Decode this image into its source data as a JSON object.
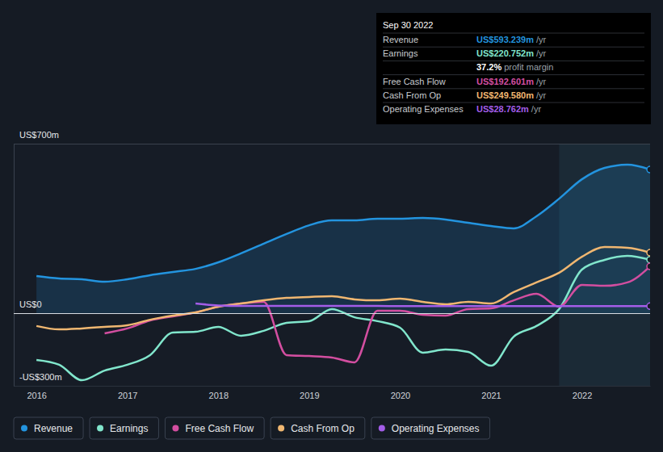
{
  "chart_data": {
    "type": "line",
    "x": [
      2016,
      2016.25,
      2016.5,
      2016.75,
      2017,
      2017.25,
      2017.5,
      2017.75,
      2018,
      2018.25,
      2018.5,
      2018.75,
      2019,
      2019.25,
      2019.5,
      2019.75,
      2020,
      2020.25,
      2020.5,
      2020.75,
      2021,
      2021.25,
      2021.5,
      2021.75,
      2022,
      2022.25,
      2022.5,
      2022.75
    ],
    "xlim": [
      2015.75,
      2022.75
    ],
    "xticks": [
      2016,
      2017,
      2018,
      2019,
      2020,
      2021,
      2022
    ],
    "ylim": [
      -300,
      700
    ],
    "yticks": [
      {
        "value": -300,
        "label": "-US$300m"
      },
      {
        "value": 0,
        "label": "US$0"
      },
      {
        "value": 700,
        "label": "US$700m"
      }
    ],
    "grid": true,
    "legend": "bottom",
    "shaded_x": [
      2021.75,
      2022.75
    ],
    "series": [
      {
        "name": "Revenue",
        "color": "#2394df",
        "type": "area",
        "values": [
          153,
          143,
          140,
          130,
          140,
          157,
          170,
          183,
          210,
          247,
          287,
          327,
          363,
          383,
          383,
          390,
          390,
          393,
          387,
          373,
          360,
          350,
          400,
          473,
          553,
          600,
          613,
          593
        ]
      },
      {
        "name": "Earnings",
        "color": "#81e6cc",
        "type": "line",
        "values": [
          -193,
          -213,
          -277,
          -237,
          -213,
          -173,
          -80,
          -77,
          -57,
          -93,
          -73,
          -40,
          -33,
          17,
          -17,
          -33,
          -60,
          -163,
          -150,
          -160,
          -217,
          -97,
          -53,
          17,
          180,
          220,
          237,
          221
        ]
      },
      {
        "name": "Free Cash Flow",
        "color": "#d34ea0",
        "type": "line",
        "values": [
          null,
          null,
          null,
          -83,
          -63,
          -30,
          -13,
          3,
          27,
          40,
          47,
          -173,
          -177,
          -183,
          -203,
          10,
          10,
          -7,
          -10,
          17,
          20,
          53,
          80,
          27,
          117,
          113,
          127,
          193
        ]
      },
      {
        "name": "Cash From Op",
        "color": "#f0b771",
        "type": "line",
        "values": [
          -53,
          -67,
          -63,
          -57,
          -50,
          -27,
          -10,
          3,
          27,
          40,
          53,
          63,
          67,
          70,
          57,
          53,
          60,
          47,
          37,
          47,
          40,
          87,
          127,
          167,
          233,
          273,
          270,
          250
        ]
      },
      {
        "name": "Operating Expenses",
        "color": "#a35de8",
        "type": "line",
        "values": [
          null,
          null,
          null,
          null,
          null,
          null,
          null,
          40,
          32,
          30,
          30,
          30,
          30,
          30,
          30,
          30,
          29,
          29,
          29,
          29,
          29,
          29,
          29,
          29,
          29,
          29,
          29,
          29
        ]
      }
    ],
    "annotation": {
      "title": "Sep 30 2022",
      "rows": [
        {
          "label": "Revenue",
          "value": "US$593.239m",
          "unit": "/yr"
        },
        {
          "label": "Earnings",
          "value": "US$220.752m",
          "unit": "/yr"
        },
        {
          "value": "37.2%",
          "unit": "profit margin"
        },
        {
          "label": "Free Cash Flow",
          "value": "US$192.601m",
          "unit": "/yr"
        },
        {
          "label": "Cash From Op",
          "value": "US$249.580m",
          "unit": "/yr"
        },
        {
          "label": "Operating Expenses",
          "value": "US$28.762m",
          "unit": "/yr"
        }
      ]
    }
  }
}
